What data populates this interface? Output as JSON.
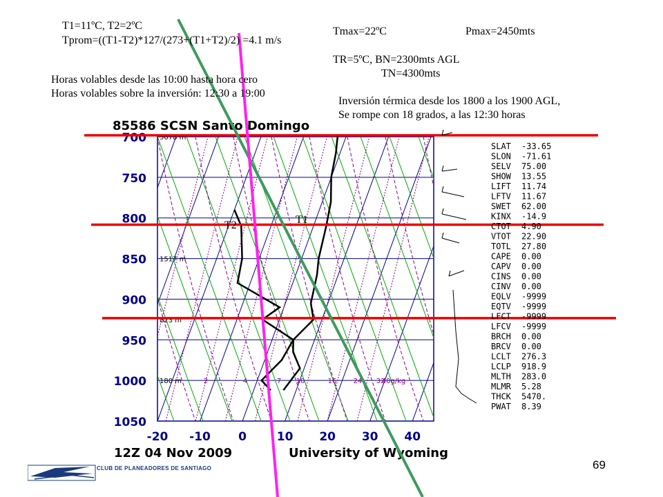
{
  "notes": {
    "t1_t2": "T1=11ºC, T2=2ºC",
    "tprom": "Tprom=((T1-T2)*127/(273+(T1+T2)/2) =4.1 m/s",
    "tmax": "Tmax=22ºC",
    "pmax": "Pmax=2450mts",
    "tr_bn": "TR=5ºC, BN=2300mts AGL",
    "tn": "TN=4300mts",
    "horas1": "Horas volables desde las 10:00 hasta hora cero",
    "horas2": "Horas volables sobre la inversión: 12:30 a 19:00",
    "inversion1": "Inversión térmica desde los 1800 a los 1900 AGL,",
    "inversion2": "Se rompe con 18 grados, a las 12:30 horas"
  },
  "chart_data": {
    "type": "line",
    "title": "85586 SCSN Santo Domingo",
    "subtitle_left": "12Z 04 Nov 2009",
    "subtitle_right": "University of Wyoming",
    "xlabels": [
      "-20",
      "-10",
      "0",
      "10",
      "20",
      "30",
      "40"
    ],
    "xlim": [
      -20,
      45
    ],
    "ylabels": [
      "700",
      "750",
      "800",
      "850",
      "900",
      "950",
      "1000",
      "1050"
    ],
    "ylim": [
      1050,
      700
    ],
    "height_labels": [
      {
        "p": 700,
        "text": "3078 m"
      },
      {
        "p": 850,
        "text": "1517 m"
      },
      {
        "p": 925,
        "text": "823 m"
      },
      {
        "p": 1000,
        "text": "180 m"
      }
    ],
    "mixing_labels": [
      "2",
      "4",
      "7",
      "10",
      "16",
      "24",
      "32",
      "40g/kg"
    ],
    "mixing_ratios": [
      2,
      4,
      7,
      10,
      16,
      24,
      32,
      40
    ],
    "curve_labels": [
      "T2",
      "T1"
    ],
    "series": [
      {
        "name": "temperature",
        "points": [
          [
            7,
            1012
          ],
          [
            9,
            985
          ],
          [
            6,
            965
          ],
          [
            5,
            950
          ],
          [
            8,
            925
          ],
          [
            6,
            905
          ],
          [
            5,
            870
          ],
          [
            4,
            850
          ],
          [
            3,
            810
          ],
          [
            2,
            780
          ],
          [
            0,
            750
          ],
          [
            -1,
            720
          ],
          [
            -2,
            700
          ]
        ]
      },
      {
        "name": "dewpoint",
        "points": [
          [
            4,
            1012
          ],
          [
            1,
            1000
          ],
          [
            4,
            975
          ],
          [
            5,
            950
          ],
          [
            -4,
            925
          ],
          [
            -1,
            910
          ],
          [
            -13,
            880
          ],
          [
            -14,
            850
          ],
          [
            -17,
            810
          ],
          [
            -20,
            790
          ]
        ]
      }
    ],
    "annotation_lines": [
      {
        "color": "#ee0000",
        "p": 700,
        "desc": "red"
      },
      {
        "color": "#ee0000",
        "p": 810,
        "desc": "red"
      },
      {
        "color": "#ee0000",
        "p": 925,
        "desc": "red"
      }
    ],
    "dry_adiabat_T1": [
      [
        11,
        1000
      ],
      [
        19,
        700
      ]
    ],
    "t2_line": [
      [
        2,
        1000
      ],
      [
        4,
        700
      ]
    ],
    "indices": [
      [
        "SLAT",
        "-33.65"
      ],
      [
        "SLON",
        "-71.61"
      ],
      [
        "SELV",
        "75.00"
      ],
      [
        "SHOW",
        "13.55"
      ],
      [
        "LIFT",
        "11.74"
      ],
      [
        "LFTV",
        "11.67"
      ],
      [
        "SWET",
        "62.00"
      ],
      [
        "KINX",
        "-14.9"
      ],
      [
        "CTOT",
        "4.90"
      ],
      [
        "VTOT",
        "22.90"
      ],
      [
        "TOTL",
        "27.80"
      ],
      [
        "CAPE",
        "0.00"
      ],
      [
        "CAPV",
        "0.00"
      ],
      [
        "CINS",
        "0.00"
      ],
      [
        "CINV",
        "0.00"
      ],
      [
        "EQLV",
        "-9999"
      ],
      [
        "EQTV",
        "-9999"
      ],
      [
        "LFCT",
        "-9999"
      ],
      [
        "LFCV",
        "-9999"
      ],
      [
        "BRCH",
        "0.00"
      ],
      [
        "BRCV",
        "0.00"
      ],
      [
        "LCLT",
        "276.3"
      ],
      [
        "LCLP",
        "918.9"
      ],
      [
        "MLTH",
        "283.0"
      ],
      [
        "MLMR",
        "5.28"
      ],
      [
        "THCK",
        "5470."
      ],
      [
        "PWAT",
        "8.39"
      ]
    ],
    "colors": {
      "red": "#ee0000",
      "green": "#3f9a5f",
      "magenta": "#ff22ee",
      "grid": "#00008a",
      "dry": "#00aa00",
      "mixing": "#8a008a"
    }
  },
  "footer": {
    "club": "CLUB DE PLANEADORES DE SANTIAGO",
    "page": "69"
  }
}
